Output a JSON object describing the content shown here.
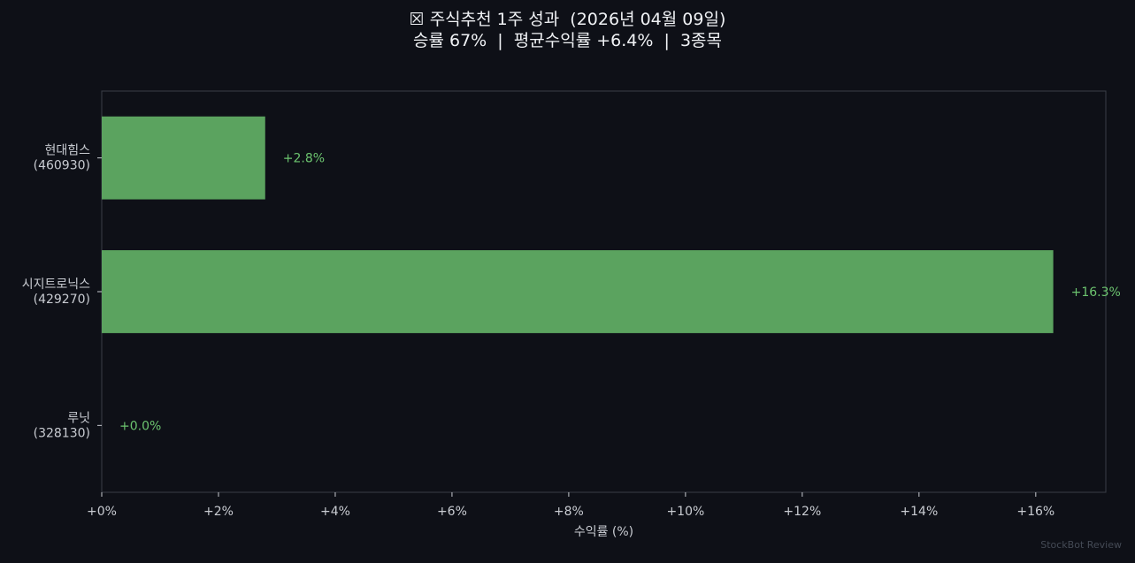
{
  "header": {
    "title": "☒ 주식추천 1주 성과  (2026년 04월 09일)",
    "subtitle": "승률 67%  |  평균수익률 +6.4%  |  3종목"
  },
  "watermark": "StockBot Review",
  "colors": {
    "background": "#0e1017",
    "bar": "#5ba35f",
    "bar_label": "#6cc46f",
    "axis_text": "#c9ccd2",
    "axis_line": "#3a3e47"
  },
  "chart_data": {
    "type": "bar",
    "orientation": "horizontal",
    "categories": [
      "현대힘스\n(460930)",
      "시지트로닉스\n(429270)",
      "루닛\n(328130)"
    ],
    "values": [
      2.8,
      16.3,
      0.0
    ],
    "value_labels": [
      "+2.8%",
      "+16.3%",
      "+0.0%"
    ],
    "xlabel": "수익률 (%)",
    "ylabel": "",
    "xlim": [
      0,
      17.2
    ],
    "xticks": [
      0,
      2,
      4,
      6,
      8,
      10,
      12,
      14,
      16
    ],
    "xtick_labels": [
      "+0%",
      "+2%",
      "+4%",
      "+6%",
      "+8%",
      "+10%",
      "+12%",
      "+14%",
      "+16%"
    ],
    "grid": false,
    "legend": "none"
  }
}
